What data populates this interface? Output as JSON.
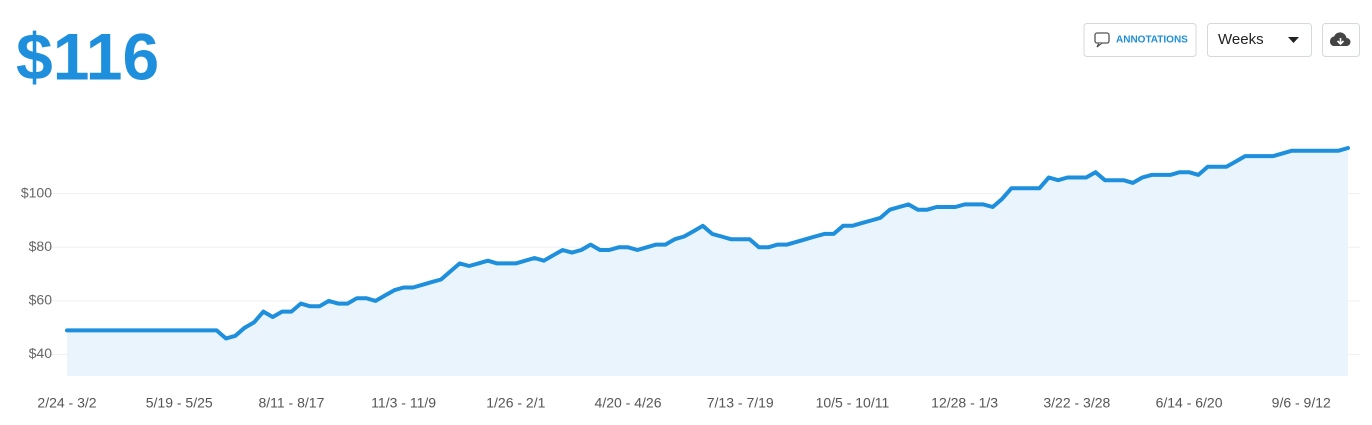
{
  "header": {
    "value": "$116"
  },
  "toolbar": {
    "annotations": "ANNOTATIONS",
    "period": "Weeks"
  },
  "chart_data": {
    "type": "line",
    "color": "#1e8fdc",
    "area_color": "#e9f4fc",
    "grid": true,
    "ylim": [
      32,
      120
    ],
    "yticks": [
      {
        "value": 40,
        "label": "$40"
      },
      {
        "value": 60,
        "label": "$60"
      },
      {
        "value": 80,
        "label": "$80"
      },
      {
        "value": 100,
        "label": "$100"
      }
    ],
    "categories": [
      "2/24 - 3/2",
      null,
      null,
      null,
      null,
      null,
      null,
      null,
      null,
      null,
      null,
      null,
      "5/19 - 5/25",
      null,
      null,
      null,
      null,
      null,
      null,
      null,
      null,
      null,
      null,
      null,
      "8/11 - 8/17",
      null,
      null,
      null,
      null,
      null,
      null,
      null,
      null,
      null,
      null,
      null,
      "11/3 - 11/9",
      null,
      null,
      null,
      null,
      null,
      null,
      null,
      null,
      null,
      null,
      null,
      "1/26 - 2/1",
      null,
      null,
      null,
      null,
      null,
      null,
      null,
      null,
      null,
      null,
      null,
      "4/20 - 4/26",
      null,
      null,
      null,
      null,
      null,
      null,
      null,
      null,
      null,
      null,
      null,
      "7/13 - 7/19",
      null,
      null,
      null,
      null,
      null,
      null,
      null,
      null,
      null,
      null,
      null,
      "10/5 - 10/11",
      null,
      null,
      null,
      null,
      null,
      null,
      null,
      null,
      null,
      null,
      null,
      "12/28 - 1/3",
      null,
      null,
      null,
      null,
      null,
      null,
      null,
      null,
      null,
      null,
      null,
      "3/22 - 3/28",
      null,
      null,
      null,
      null,
      null,
      null,
      null,
      null,
      null,
      null,
      null,
      "6/14 - 6/20",
      null,
      null,
      null,
      null,
      null,
      null,
      null,
      null,
      null,
      null,
      null,
      "9/6 - 9/12",
      null,
      null,
      null,
      null,
      null
    ],
    "values": [
      49,
      49,
      49,
      49,
      49,
      49,
      49,
      49,
      49,
      49,
      49,
      49,
      49,
      49,
      49,
      49,
      49,
      46,
      47,
      50,
      52,
      56,
      54,
      56,
      56,
      59,
      58,
      58,
      60,
      59,
      59,
      61,
      61,
      60,
      62,
      64,
      65,
      65,
      66,
      67,
      68,
      71,
      74,
      73,
      74,
      75,
      74,
      74,
      74,
      75,
      76,
      75,
      77,
      79,
      78,
      79,
      81,
      79,
      79,
      80,
      80,
      79,
      80,
      81,
      81,
      83,
      84,
      86,
      88,
      85,
      84,
      83,
      83,
      83,
      80,
      80,
      81,
      81,
      82,
      83,
      84,
      85,
      85,
      88,
      88,
      89,
      90,
      91,
      94,
      95,
      96,
      94,
      94,
      95,
      95,
      95,
      96,
      96,
      96,
      95,
      98,
      102,
      102,
      102,
      102,
      106,
      105,
      106,
      106,
      106,
      108,
      105,
      105,
      105,
      104,
      106,
      107,
      107,
      107,
      108,
      108,
      107,
      110,
      110,
      110,
      112,
      114,
      114,
      114,
      114,
      115,
      116,
      116,
      116,
      116,
      116,
      116,
      117
    ]
  }
}
